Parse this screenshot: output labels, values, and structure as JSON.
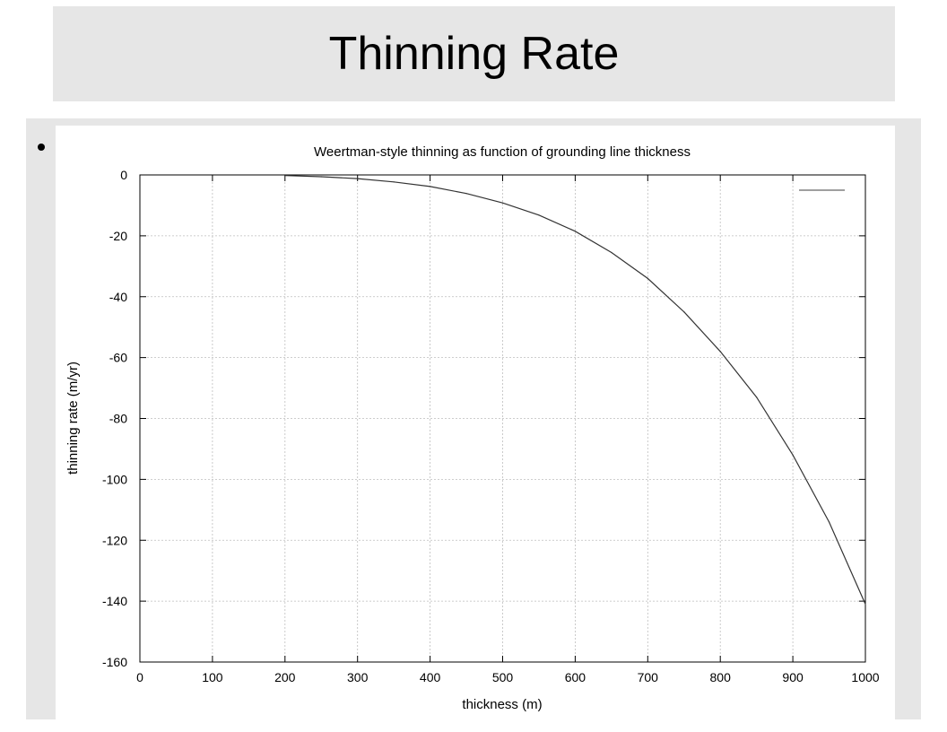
{
  "slide": {
    "title": "Thinning Rate"
  },
  "chart_data": {
    "type": "line",
    "title": "Weertman-style thinning as function of grounding line thickness",
    "xlabel": "thickness (m)",
    "ylabel": "thinning rate (m/yr)",
    "xlim": [
      0,
      1000
    ],
    "ylim": [
      -160,
      0
    ],
    "xticks": [
      0,
      100,
      200,
      300,
      400,
      500,
      600,
      700,
      800,
      900,
      1000
    ],
    "yticks": [
      0,
      -20,
      -40,
      -60,
      -80,
      -100,
      -120,
      -140,
      -160
    ],
    "grid": true,
    "legend": "top-right",
    "series": [
      {
        "color": "#333333",
        "x": [
          200,
          250,
          300,
          350,
          400,
          450,
          500,
          550,
          600,
          650,
          700,
          750,
          800,
          850,
          900,
          950,
          1000
        ],
        "y": [
          -0.2,
          -0.6,
          -1.2,
          -2.3,
          -3.8,
          -6.1,
          -9.2,
          -13.2,
          -18.5,
          -25.5,
          -34.0,
          -45.0,
          -58.0,
          -73.0,
          -92.0,
          -114.0,
          -141.0
        ]
      }
    ]
  }
}
